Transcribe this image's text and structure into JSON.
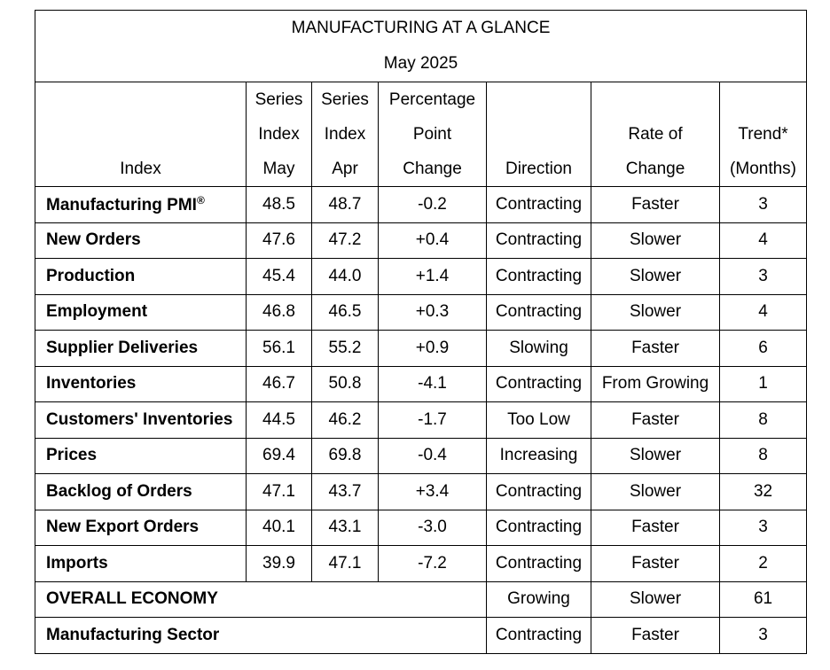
{
  "title": "MANUFACTURING AT A GLANCE",
  "subtitle": "May 2025",
  "headers": {
    "index": "Index",
    "may": [
      "Series",
      "Index",
      "May"
    ],
    "apr": [
      "Series",
      "Index",
      "Apr"
    ],
    "change": [
      "Percentage",
      "Point",
      "Change"
    ],
    "direction": "Direction",
    "rate": [
      "Rate of",
      "Change"
    ],
    "trend": [
      "Trend*",
      "(Months)"
    ]
  },
  "rows": [
    {
      "name": "Manufacturing PMI",
      "sup": "®",
      "may": "48.5",
      "apr": "48.7",
      "change": "-0.2",
      "direction": "Contracting",
      "rate": "Faster",
      "trend": "3"
    },
    {
      "name": "New Orders",
      "may": "47.6",
      "apr": "47.2",
      "change": "+0.4",
      "direction": "Contracting",
      "rate": "Slower",
      "trend": "4"
    },
    {
      "name": "Production",
      "may": "45.4",
      "apr": "44.0",
      "change": "+1.4",
      "direction": "Contracting",
      "rate": "Slower",
      "trend": "3"
    },
    {
      "name": "Employment",
      "may": "46.8",
      "apr": "46.5",
      "change": "+0.3",
      "direction": "Contracting",
      "rate": "Slower",
      "trend": "4"
    },
    {
      "name": "Supplier Deliveries",
      "may": "56.1",
      "apr": "55.2",
      "change": "+0.9",
      "direction": "Slowing",
      "rate": "Faster",
      "trend": "6"
    },
    {
      "name": "Inventories",
      "may": "46.7",
      "apr": "50.8",
      "change": "-4.1",
      "direction": "Contracting",
      "rate": "From Growing",
      "trend": "1"
    },
    {
      "name": "Customers' Inventories",
      "may": "44.5",
      "apr": "46.2",
      "change": "-1.7",
      "direction": "Too Low",
      "rate": "Faster",
      "trend": "8"
    },
    {
      "name": "Prices",
      "may": "69.4",
      "apr": "69.8",
      "change": "-0.4",
      "direction": "Increasing",
      "rate": "Slower",
      "trend": "8"
    },
    {
      "name": "Backlog of Orders",
      "may": "47.1",
      "apr": "43.7",
      "change": "+3.4",
      "direction": "Contracting",
      "rate": "Slower",
      "trend": "32"
    },
    {
      "name": "New Export Orders",
      "may": "40.1",
      "apr": "43.1",
      "change": "-3.0",
      "direction": "Contracting",
      "rate": "Faster",
      "trend": "3"
    },
    {
      "name": "Imports",
      "may": "39.9",
      "apr": "47.1",
      "change": "-7.2",
      "direction": "Contracting",
      "rate": "Faster",
      "trend": "2"
    }
  ],
  "summary_rows": [
    {
      "name": "OVERALL ECONOMY",
      "direction": "Growing",
      "rate": "Slower",
      "trend": "61"
    },
    {
      "name": "Manufacturing Sector",
      "direction": "Contracting",
      "rate": "Faster",
      "trend": "3"
    }
  ]
}
